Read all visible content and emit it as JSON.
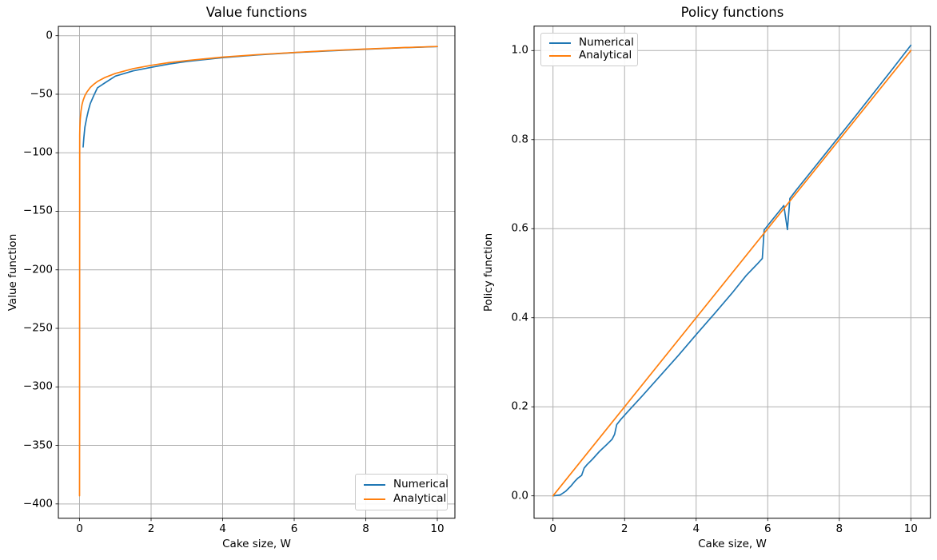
{
  "figure": {
    "background": "#ffffff",
    "text_color": "#000000",
    "grid_color": "#b0b0b0",
    "spine_color": "#000000"
  },
  "chart_data": [
    {
      "type": "line",
      "title": "Value functions",
      "xlabel": "Cake size, W",
      "ylabel": "Value function",
      "xlim": [
        -0.6,
        10.5
      ],
      "ylim": [
        -412,
        8
      ],
      "grid": true,
      "legend_position": "lower right",
      "xticks": [
        0,
        2,
        4,
        6,
        8,
        10
      ],
      "xtick_labels": [
        "0",
        "2",
        "4",
        "6",
        "8",
        "10"
      ],
      "yticks": [
        0,
        -50,
        -100,
        -150,
        -200,
        -250,
        -300,
        -350,
        -400
      ],
      "ytick_labels": [
        "0",
        "−50",
        "−100",
        "−150",
        "−200",
        "−250",
        "−300",
        "−350",
        "−400"
      ],
      "series": [
        {
          "name": "Numerical",
          "color": "#1f77b4",
          "x": [
            0.1,
            0.12,
            0.15,
            0.2,
            0.25,
            0.3,
            0.4,
            0.5,
            0.7,
            1.0,
            1.5,
            2.0,
            2.5,
            3.0,
            4.0,
            5.0,
            6.0,
            7.0,
            8.0,
            9.0,
            10.0
          ],
          "y": [
            -95,
            -87,
            -78,
            -70,
            -63.5,
            -58,
            -51,
            -44.5,
            -40.5,
            -34.5,
            -30,
            -27,
            -24.2,
            -22,
            -18.8,
            -16.4,
            -14.5,
            -12.9,
            -11.5,
            -10.3,
            -9.3
          ]
        },
        {
          "name": "Analytical",
          "color": "#ff7f0e",
          "x": [
            0.0,
            0.005,
            0.01,
            0.02,
            0.04,
            0.07,
            0.1,
            0.15,
            0.2,
            0.3,
            0.4,
            0.5,
            0.7,
            1.0,
            1.5,
            2.0,
            2.5,
            3.0,
            4.0,
            5.0,
            6.0,
            7.0,
            8.0,
            9.0,
            10.0
          ],
          "y": [
            -393,
            -85.2,
            -78.3,
            -71.3,
            -64.4,
            -58.8,
            -55.2,
            -51.2,
            -48.3,
            -44.2,
            -41.4,
            -39.1,
            -35.8,
            -32.2,
            -28.1,
            -25.3,
            -23.0,
            -21.2,
            -18.3,
            -16.1,
            -14.3,
            -12.7,
            -11.4,
            -10.2,
            -9.2
          ]
        }
      ]
    },
    {
      "type": "line",
      "title": "Policy functions",
      "xlabel": "Cake size, W",
      "ylabel": "Policy function",
      "xlim": [
        -0.5,
        10.5
      ],
      "ylim": [
        -0.05,
        1.06
      ],
      "grid": true,
      "legend_position": "upper left",
      "xticks": [
        0,
        2,
        4,
        6,
        8,
        10
      ],
      "xtick_labels": [
        "0",
        "2",
        "4",
        "6",
        "8",
        "10"
      ],
      "yticks": [
        0.0,
        0.2,
        0.4,
        0.6,
        0.8,
        1.0
      ],
      "ytick_labels": [
        "0.0",
        "0.2",
        "0.4",
        "0.6",
        "0.8",
        "1.0"
      ],
      "series": [
        {
          "name": "Numerical",
          "color": "#1f77b4",
          "x": [
            0,
            0.2,
            0.35,
            0.5,
            0.6,
            0.7,
            0.8,
            0.87,
            0.95,
            1.1,
            1.3,
            1.5,
            1.65,
            1.72,
            1.78,
            1.9,
            2.1,
            2.5,
            3.0,
            3.5,
            4.0,
            4.5,
            5.0,
            5.4,
            5.7,
            5.85,
            5.9,
            6.1,
            6.3,
            6.45,
            6.55,
            6.62,
            6.8,
            7.5,
            8.5,
            9.5,
            10.0
          ],
          "y": [
            0,
            0.002,
            0.01,
            0.022,
            0.032,
            0.04,
            0.046,
            0.062,
            0.07,
            0.082,
            0.1,
            0.115,
            0.127,
            0.138,
            0.16,
            0.172,
            0.19,
            0.225,
            0.27,
            0.315,
            0.362,
            0.408,
            0.455,
            0.495,
            0.52,
            0.533,
            0.597,
            0.617,
            0.637,
            0.652,
            0.598,
            0.668,
            0.687,
            0.757,
            0.858,
            0.96,
            1.012
          ]
        },
        {
          "name": "Analytical",
          "color": "#ff7f0e",
          "x": [
            0,
            10
          ],
          "y": [
            0,
            1.0
          ]
        }
      ]
    }
  ]
}
